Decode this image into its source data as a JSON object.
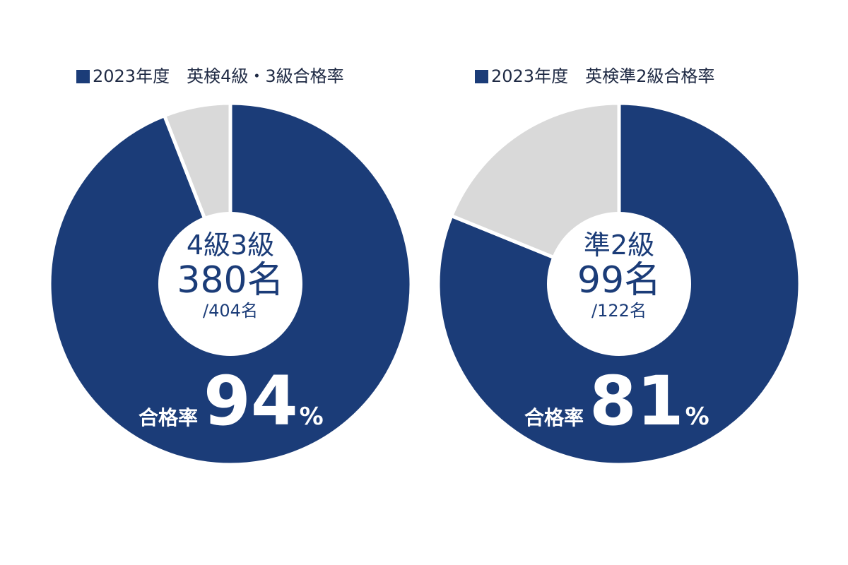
{
  "chart_data": [
    {
      "type": "pie",
      "title": "2023年度　英検4級・3級合格率",
      "grade_label": "4級3級",
      "passed_text": "380名",
      "total_text": "/404名",
      "rate_label": "合格率",
      "rate_value": "94",
      "rate_unit": "%",
      "passed": 380,
      "total": 404,
      "pass_rate": 94,
      "colors": {
        "pass": "#1b3c78",
        "fail": "#d9d9d9"
      }
    },
    {
      "type": "pie",
      "title": "2023年度　英検準2級合格率",
      "grade_label": "準2級",
      "passed_text": "99名",
      "total_text": "/122名",
      "rate_label": "合格率",
      "rate_value": "81",
      "rate_unit": "%",
      "passed": 99,
      "total": 122,
      "pass_rate": 81,
      "colors": {
        "pass": "#1b3c78",
        "fail": "#d9d9d9"
      }
    }
  ]
}
